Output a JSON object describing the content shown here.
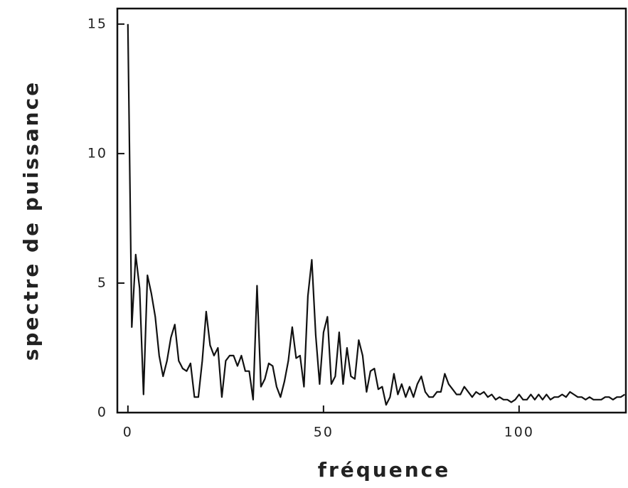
{
  "chart_data": {
    "type": "line",
    "x_label": "fréquence",
    "y_label": "spectre de puissance",
    "x": [
      0,
      1,
      2,
      3,
      4,
      5,
      6,
      7,
      8,
      9,
      10,
      11,
      12,
      13,
      14,
      15,
      16,
      17,
      18,
      19,
      20,
      21,
      22,
      23,
      24,
      25,
      26,
      27,
      28,
      29,
      30,
      31,
      32,
      33,
      34,
      35,
      36,
      37,
      38,
      39,
      40,
      41,
      42,
      43,
      44,
      45,
      46,
      47,
      48,
      49,
      50,
      51,
      52,
      53,
      54,
      55,
      56,
      57,
      58,
      59,
      60,
      61,
      62,
      63,
      64,
      65,
      66,
      67,
      68,
      69,
      70,
      71,
      72,
      73,
      74,
      75,
      76,
      77,
      78,
      79,
      80,
      81,
      82,
      83,
      84,
      85,
      86,
      87,
      88,
      89,
      90,
      91,
      92,
      93,
      94,
      95,
      96,
      97,
      98,
      99,
      100,
      101,
      102,
      103,
      104,
      105,
      106,
      107,
      108,
      109,
      110,
      111,
      112,
      113,
      114,
      115,
      116,
      117,
      118,
      119,
      120,
      121,
      122,
      123,
      124,
      125,
      126,
      127
    ],
    "values": [
      15,
      3.3,
      6.1,
      4.8,
      0.7,
      5.3,
      4.6,
      3.7,
      2.2,
      1.4,
      2.0,
      2.9,
      3.4,
      2.0,
      1.7,
      1.6,
      1.9,
      0.6,
      0.6,
      2.0,
      3.9,
      2.6,
      2.2,
      2.5,
      0.6,
      2.0,
      2.2,
      2.2,
      1.8,
      2.2,
      1.6,
      1.6,
      0.5,
      4.9,
      1.0,
      1.3,
      1.9,
      1.8,
      1.0,
      0.6,
      1.2,
      2.0,
      3.3,
      2.1,
      2.2,
      1.0,
      4.5,
      5.9,
      3.0,
      1.1,
      3.1,
      3.7,
      1.1,
      1.4,
      3.1,
      1.1,
      2.5,
      1.4,
      1.3,
      2.8,
      2.2,
      0.8,
      1.6,
      1.7,
      0.9,
      1.0,
      0.3,
      0.6,
      1.5,
      0.7,
      1.1,
      0.6,
      1.0,
      0.6,
      1.1,
      1.4,
      0.8,
      0.6,
      0.6,
      0.8,
      0.8,
      1.5,
      1.1,
      0.9,
      0.7,
      0.7,
      1.0,
      0.8,
      0.6,
      0.8,
      0.7,
      0.8,
      0.6,
      0.7,
      0.5,
      0.6,
      0.5,
      0.5,
      0.4,
      0.5,
      0.7,
      0.5,
      0.5,
      0.7,
      0.5,
      0.7,
      0.5,
      0.7,
      0.5,
      0.6,
      0.6,
      0.7,
      0.6,
      0.8,
      0.7,
      0.6,
      0.6,
      0.5,
      0.6,
      0.5,
      0.5,
      0.5,
      0.6,
      0.6,
      0.5,
      0.6,
      0.6,
      0.7
    ],
    "color": "#111111",
    "xlim": [
      -2.7,
      127.3
    ],
    "xticks": [
      0,
      50,
      100
    ],
    "ylim": [
      0,
      15.6
    ],
    "yticks": [
      0,
      5,
      10,
      15
    ],
    "grid": false
  }
}
